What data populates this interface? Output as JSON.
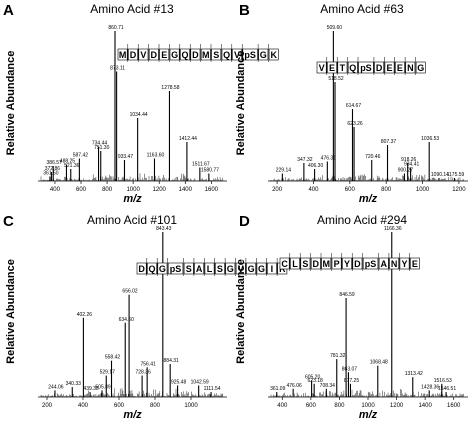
{
  "chart_data": [
    {
      "type": "bar",
      "panel_letter": "A",
      "title": "Amino Acid #13",
      "xlabel": "m/z",
      "ylabel": "Relative Abundance",
      "xlim": [
        270,
        1720
      ],
      "xticks": [
        400,
        600,
        800,
        1000,
        1200,
        1400,
        1600
      ],
      "sequence": [
        "M",
        "D",
        "V",
        "D",
        "E",
        "G",
        "Q",
        "D",
        "M",
        "S",
        "Q",
        "V",
        "pS",
        "G",
        "K"
      ],
      "peaks": [
        {
          "x": 361.5,
          "y": 3,
          "label": "361.50"
        },
        {
          "x": 372.86,
          "y": 6,
          "label": "372.86"
        },
        {
          "x": 386.57,
          "y": 10,
          "label": "386.57"
        },
        {
          "x": 488.25,
          "y": 11,
          "label": "488.25"
        },
        {
          "x": 521.36,
          "y": 8,
          "label": "521.36"
        },
        {
          "x": 587.42,
          "y": 15,
          "label": "587.42"
        },
        {
          "x": 734.44,
          "y": 23,
          "label": "734.44"
        },
        {
          "x": 751.3,
          "y": 20,
          "label": "751.30"
        },
        {
          "x": 860.71,
          "y": 100,
          "label": "860.71"
        },
        {
          "x": 873.11,
          "y": 73,
          "label": "873.11"
        },
        {
          "x": 933.47,
          "y": 14,
          "label": "933.47"
        },
        {
          "x": 1034.44,
          "y": 42,
          "label": "1034.44"
        },
        {
          "x": 1163.6,
          "y": 15,
          "label": "1163.60"
        },
        {
          "x": 1278.58,
          "y": 60,
          "label": "1278.58"
        },
        {
          "x": 1412.44,
          "y": 26,
          "label": "1412.44"
        },
        {
          "x": 1511.67,
          "y": 9,
          "label": "1511.67"
        },
        {
          "x": 1580.77,
          "y": 5,
          "label": "1580.77"
        }
      ]
    },
    {
      "type": "bar",
      "panel_letter": "B",
      "title": "Amino Acid #63",
      "xlabel": "m/z",
      "ylabel": "Relative Abundance",
      "xlim": [
        150,
        1250
      ],
      "xticks": [
        200,
        400,
        600,
        800,
        1000,
        1200
      ],
      "sequence": [
        "V",
        "E",
        "T",
        "Q",
        "pS",
        "D",
        "E",
        "E",
        "N",
        "G"
      ],
      "peaks": [
        {
          "x": 229.14,
          "y": 5,
          "label": "229.14"
        },
        {
          "x": 347.32,
          "y": 12,
          "label": "347.32"
        },
        {
          "x": 406.3,
          "y": 8,
          "label": "406.30"
        },
        {
          "x": 476.31,
          "y": 13,
          "label": "476.31"
        },
        {
          "x": 509.6,
          "y": 100,
          "label": "509.60"
        },
        {
          "x": 518.52,
          "y": 66,
          "label": "518.52"
        },
        {
          "x": 614.67,
          "y": 48,
          "label": "614.67"
        },
        {
          "x": 623.26,
          "y": 36,
          "label": "623.26"
        },
        {
          "x": 720.46,
          "y": 14,
          "label": "720.46"
        },
        {
          "x": 807.37,
          "y": 24,
          "label": "807.37"
        },
        {
          "x": 900.27,
          "y": 5,
          "label": "900.27"
        },
        {
          "x": 918.26,
          "y": 12,
          "label": "918.26"
        },
        {
          "x": 934.41,
          "y": 9,
          "label": "934.41"
        },
        {
          "x": 1036.53,
          "y": 26,
          "label": "1036.53"
        },
        {
          "x": 1090.14,
          "y": 2,
          "label": "1090.14"
        },
        {
          "x": 1175.59,
          "y": 2,
          "label": "1175.59"
        }
      ]
    },
    {
      "type": "bar",
      "panel_letter": "C",
      "title": "Amino Acid #101",
      "xlabel": "m/z",
      "ylabel": "Relative Abundance",
      "xlim": [
        150,
        1200
      ],
      "xticks": [
        200,
        400,
        600,
        800,
        1000
      ],
      "sequence": [
        "D",
        "Q",
        "G",
        "pS",
        "S",
        "A",
        "L",
        "S",
        "G",
        "V",
        "G",
        "G",
        "I",
        "R"
      ],
      "peaks": [
        {
          "x": 244.06,
          "y": 4,
          "label": "244.06"
        },
        {
          "x": 340.33,
          "y": 6,
          "label": "340.33"
        },
        {
          "x": 402.26,
          "y": 48,
          "label": "402.26"
        },
        {
          "x": 439.35,
          "y": 3,
          "label": "439.35"
        },
        {
          "x": 505.89,
          "y": 4,
          "label": "505.89"
        },
        {
          "x": 529.17,
          "y": 13,
          "label": "529.17"
        },
        {
          "x": 558.42,
          "y": 22,
          "label": "558.42"
        },
        {
          "x": 634.6,
          "y": 45,
          "label": "634.60"
        },
        {
          "x": 656.02,
          "y": 62,
          "label": "656.02"
        },
        {
          "x": 728.36,
          "y": 13,
          "label": "728.36"
        },
        {
          "x": 756.41,
          "y": 18,
          "label": "756.41"
        },
        {
          "x": 843.43,
          "y": 100,
          "label": "843.43"
        },
        {
          "x": 884.31,
          "y": 20,
          "label": "884.31"
        },
        {
          "x": 925.48,
          "y": 7,
          "label": "925.48"
        },
        {
          "x": 1042.59,
          "y": 7,
          "label": "1042.59"
        },
        {
          "x": 1111.54,
          "y": 3,
          "label": "1111.54"
        }
      ]
    },
    {
      "type": "bar",
      "panel_letter": "D",
      "title": "Amino Acid #294",
      "xlabel": "m/z",
      "ylabel": "Relative Abundance",
      "xlim": [
        300,
        1700
      ],
      "xticks": [
        400,
        600,
        800,
        1000,
        1200,
        1400,
        1600
      ],
      "sequence": [
        "C",
        "L",
        "S",
        "D",
        "M",
        "P",
        "Y",
        "D",
        "pS",
        "A",
        "N",
        "Y",
        "E"
      ],
      "peaks": [
        {
          "x": 361.09,
          "y": 3,
          "label": "361.09"
        },
        {
          "x": 476.06,
          "y": 5,
          "label": "476.06"
        },
        {
          "x": 605.2,
          "y": 10,
          "label": "605.20"
        },
        {
          "x": 623.18,
          "y": 8,
          "label": "623.18"
        },
        {
          "x": 708.34,
          "y": 5,
          "label": "708.34"
        },
        {
          "x": 781.32,
          "y": 23,
          "label": "781.32"
        },
        {
          "x": 846.59,
          "y": 60,
          "label": "846.59"
        },
        {
          "x": 863.07,
          "y": 15,
          "label": "863.07"
        },
        {
          "x": 877.25,
          "y": 8,
          "label": "877.25"
        },
        {
          "x": 1068.48,
          "y": 19,
          "label": "1068.48"
        },
        {
          "x": 1166.36,
          "y": 100,
          "label": "1166.36"
        },
        {
          "x": 1313.42,
          "y": 12,
          "label": "1313.42"
        },
        {
          "x": 1428.36,
          "y": 4,
          "label": "1428.36"
        },
        {
          "x": 1516.53,
          "y": 8,
          "label": "1516.53"
        },
        {
          "x": 1546.51,
          "y": 3,
          "label": "1546.51"
        }
      ]
    }
  ]
}
